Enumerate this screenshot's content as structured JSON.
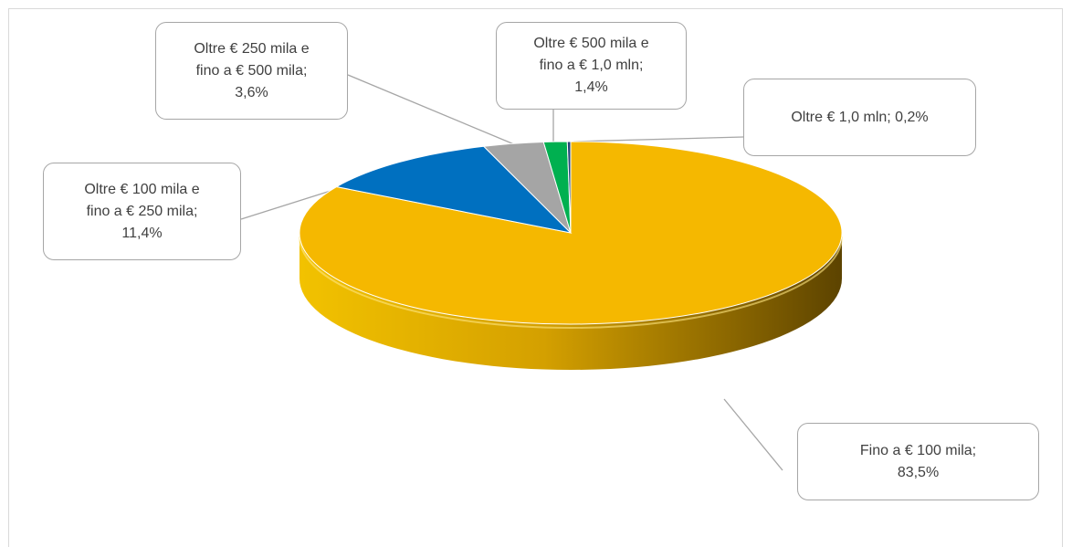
{
  "chart_data": {
    "type": "pie",
    "slices": [
      {
        "label": "Fino a € 100 mila",
        "value": 83.5,
        "value_label": "83,5%",
        "color": "#f5b800"
      },
      {
        "label": "Oltre € 100 mila e fino a € 250 mila",
        "value": 11.4,
        "value_label": "11,4%",
        "color": "#0070c0"
      },
      {
        "label": "Oltre € 250 mila e fino a € 500 mila",
        "value": 3.6,
        "value_label": "3,6%",
        "color": "#a5a5a5"
      },
      {
        "label": "Oltre € 500 mila e fino a € 1,0 mln",
        "value": 1.4,
        "value_label": "1,4%",
        "color": "#00b050"
      },
      {
        "label": "Oltre € 1,0 mln",
        "value": 0.2,
        "value_label": "0,2%",
        "color": "#264478"
      }
    ],
    "data_labels": [
      {
        "lines": [
          "Fino a € 100 mila;",
          "83,5%"
        ]
      },
      {
        "lines": [
          "Oltre € 100 mila e",
          "fino a € 250 mila;",
          "11,4%"
        ]
      },
      {
        "lines": [
          "Oltre € 250 mila e",
          "fino a € 500 mila;",
          "3,6%"
        ]
      },
      {
        "lines": [
          "Oltre € 500 mila e",
          "fino a € 1,0 mln;",
          "1,4%"
        ]
      },
      {
        "lines": [
          "Oltre € 1,0 mln; 0,2%"
        ]
      }
    ],
    "style": "3d-pie",
    "legend": "none"
  }
}
